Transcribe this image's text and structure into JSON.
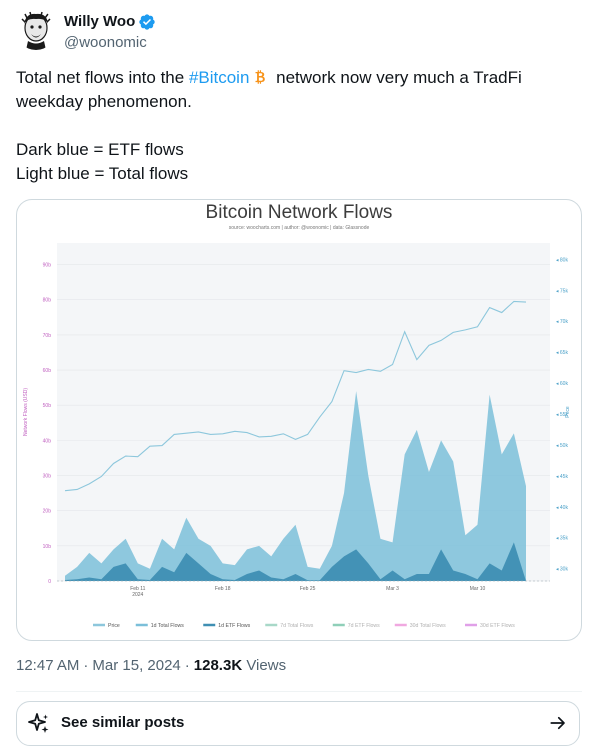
{
  "author": {
    "display_name": "Willy Woo",
    "handle": "@woonomic"
  },
  "tweet": {
    "line1_pre": "Total net flows into the ",
    "hashtag": "#Bitcoin",
    "line1_post": " network now very much a TradFi weekday phenomenon.",
    "line2": "Dark blue = ETF flows",
    "line3": "Light blue = Total flows"
  },
  "meta": {
    "time": "12:47 AM",
    "date": "Mar 15, 2024",
    "views_count": "128.3K",
    "views_label": "Views"
  },
  "similar_posts": {
    "label": "See similar posts"
  },
  "colors": {
    "accent": "#1d9bf0",
    "btc_orange": "#f7931a",
    "total_flows": "#7bbfd9",
    "etf_flows": "#3f8fb3",
    "price_line": "#8dc7dc"
  },
  "chart_data": {
    "type": "area",
    "title": "Bitcoin Network Flows",
    "subtitle": "source: woocharts.com | author: @woonomic | data: Glassnode",
    "ylabel": "Network Flows (USD)",
    "y2label": "Price",
    "x_ticks": [
      "Feb 11\n2024",
      "Feb 18",
      "Feb 25",
      "Mar 3",
      "Mar 10"
    ],
    "y_ticks": [
      "0",
      "10b",
      "20b",
      "30b",
      "40b",
      "50b",
      "60b",
      "70b",
      "80b",
      "90b"
    ],
    "y_range": [
      0,
      95
    ],
    "y2_ticks": [
      "30k",
      "35k",
      "40k",
      "45k",
      "50k",
      "55k",
      "60k",
      "65k",
      "70k",
      "75k",
      "80k"
    ],
    "y2_range": [
      28000,
      82000
    ],
    "legend": [
      "Price",
      "1d Total Flows",
      "1d ETF Flows",
      "7d Total Flows",
      "7d ETF Flows",
      "30d Total Flows",
      "30d ETF Flows"
    ],
    "legend_colors": [
      "#8dc7dc",
      "#7bbfd9",
      "#3f8fb3",
      "#a8d8c8",
      "#8fcfb8",
      "#f0a8e0",
      "#e0a0e8"
    ],
    "days": [
      "Feb 5",
      "Feb 6",
      "Feb 7",
      "Feb 8",
      "Feb 9",
      "Feb 10",
      "Feb 11",
      "Feb 12",
      "Feb 13",
      "Feb 14",
      "Feb 15",
      "Feb 16",
      "Feb 17",
      "Feb 18",
      "Feb 19",
      "Feb 20",
      "Feb 21",
      "Feb 22",
      "Feb 23",
      "Feb 24",
      "Feb 25",
      "Feb 26",
      "Feb 27",
      "Feb 28",
      "Feb 29",
      "Mar 1",
      "Mar 2",
      "Mar 3",
      "Mar 4",
      "Mar 5",
      "Mar 6",
      "Mar 7",
      "Mar 8",
      "Mar 9",
      "Mar 10",
      "Mar 11",
      "Mar 12",
      "Mar 13",
      "Mar 14"
    ],
    "series": [
      {
        "name": "1d Total Flows",
        "values": [
          1.5,
          4,
          8,
          5,
          9,
          12,
          5,
          3.5,
          12,
          9,
          18,
          12,
          10,
          5,
          4.5,
          9,
          10,
          7,
          12,
          16,
          4,
          3.5,
          10,
          25,
          54,
          30,
          12,
          11,
          36,
          43,
          31,
          40,
          34,
          13,
          16,
          53,
          36,
          42,
          27
        ]
      },
      {
        "name": "1d ETF Flows",
        "values": [
          0.3,
          0.5,
          1,
          0.5,
          4,
          5,
          0.5,
          0.3,
          4,
          2.5,
          8,
          5,
          2,
          0.5,
          0.3,
          2,
          3,
          1,
          0.5,
          2,
          0.2,
          0.2,
          4,
          7,
          9,
          5,
          0.5,
          3,
          0.5,
          2,
          2,
          9,
          3,
          2,
          0.5,
          5,
          3,
          11,
          0
        ]
      }
    ],
    "price": [
      42600,
      42800,
      43700,
      44900,
      47000,
      48200,
      48100,
      49800,
      49900,
      51700,
      51900,
      52100,
      51700,
      51800,
      52200,
      52000,
      51300,
      51400,
      51800,
      50900,
      51700,
      54500,
      57000,
      62000,
      61700,
      62200,
      61900,
      63000,
      68300,
      63800,
      66100,
      66900,
      68200,
      68600,
      69100,
      72200,
      71400,
      73200,
      73100
    ]
  }
}
